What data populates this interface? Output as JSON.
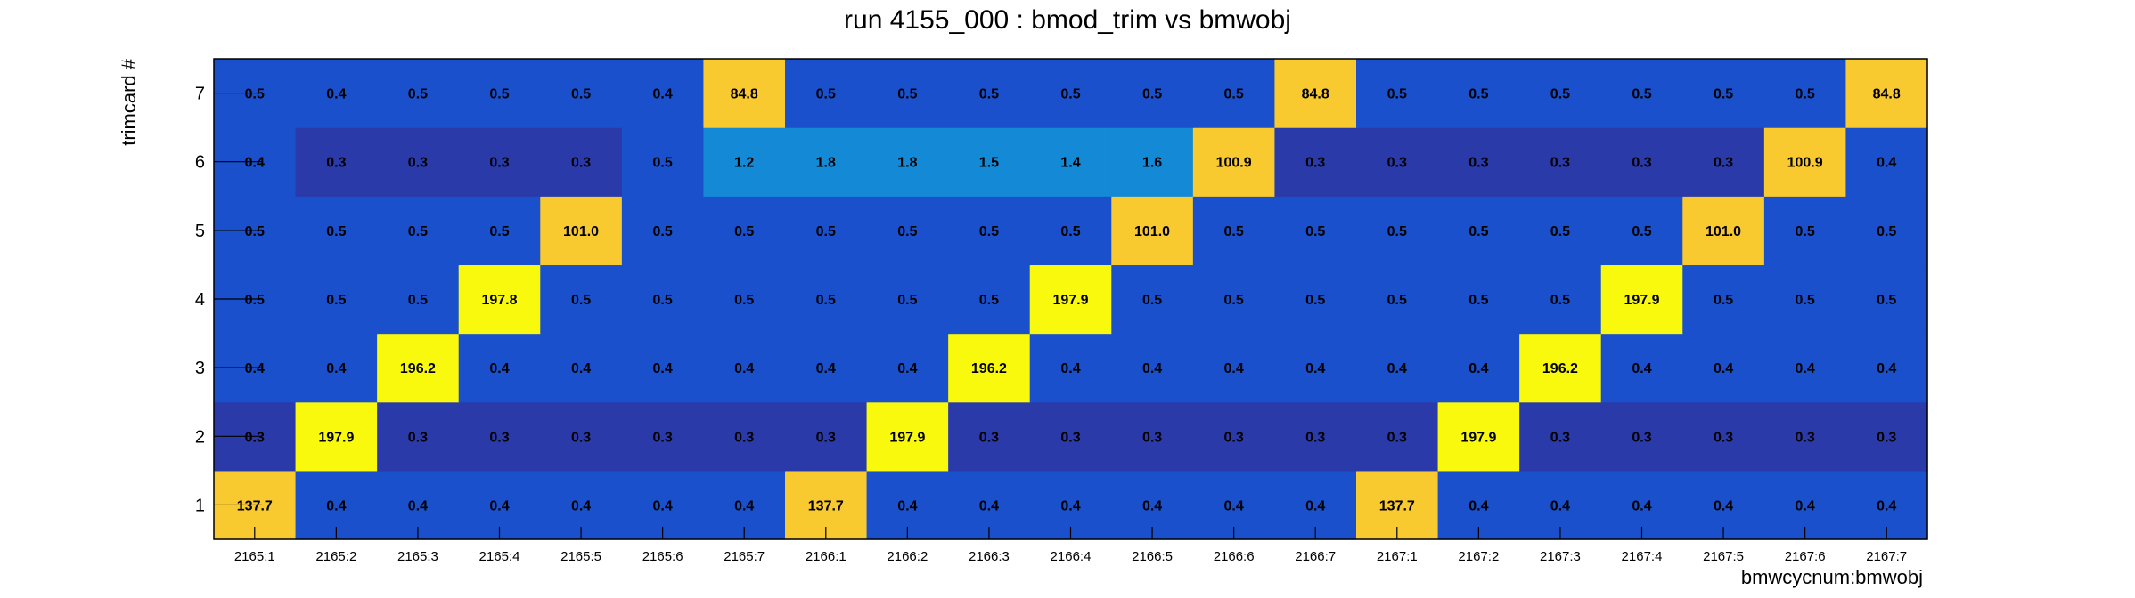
{
  "chart_data": {
    "type": "heatmap",
    "title": "run 4155_000 : bmod_trim vs bmwobj",
    "xlabel": "bmwcycnum:bmwobj",
    "ylabel": "trimcard #",
    "x_categories": [
      "2165:1",
      "2165:2",
      "2165:3",
      "2165:4",
      "2165:5",
      "2165:6",
      "2165:7",
      "2166:1",
      "2166:2",
      "2166:3",
      "2166:4",
      "2166:5",
      "2166:6",
      "2166:7",
      "2167:1",
      "2167:2",
      "2167:3",
      "2167:4",
      "2167:5",
      "2167:6",
      "2167:7"
    ],
    "y_categories": [
      "1",
      "2",
      "3",
      "4",
      "5",
      "6",
      "7"
    ],
    "values": [
      [
        "137.7",
        "0.4",
        "0.4",
        "0.4",
        "0.4",
        "0.4",
        "0.4",
        "137.7",
        "0.4",
        "0.4",
        "0.4",
        "0.4",
        "0.4",
        "0.4",
        "137.7",
        "0.4",
        "0.4",
        "0.4",
        "0.4",
        "0.4",
        "0.4"
      ],
      [
        "0.3",
        "197.9",
        "0.3",
        "0.3",
        "0.3",
        "0.3",
        "0.3",
        "0.3",
        "197.9",
        "0.3",
        "0.3",
        "0.3",
        "0.3",
        "0.3",
        "0.3",
        "197.9",
        "0.3",
        "0.3",
        "0.3",
        "0.3",
        "0.3"
      ],
      [
        "0.4",
        "0.4",
        "196.2",
        "0.4",
        "0.4",
        "0.4",
        "0.4",
        "0.4",
        "0.4",
        "196.2",
        "0.4",
        "0.4",
        "0.4",
        "0.4",
        "0.4",
        "0.4",
        "196.2",
        "0.4",
        "0.4",
        "0.4",
        "0.4"
      ],
      [
        "0.5",
        "0.5",
        "0.5",
        "197.8",
        "0.5",
        "0.5",
        "0.5",
        "0.5",
        "0.5",
        "0.5",
        "197.9",
        "0.5",
        "0.5",
        "0.5",
        "0.5",
        "0.5",
        "0.5",
        "197.9",
        "0.5",
        "0.5",
        "0.5"
      ],
      [
        "0.5",
        "0.5",
        "0.5",
        "0.5",
        "101.0",
        "0.5",
        "0.5",
        "0.5",
        "0.5",
        "0.5",
        "0.5",
        "101.0",
        "0.5",
        "0.5",
        "0.5",
        "0.5",
        "0.5",
        "0.5",
        "101.0",
        "0.5",
        "0.5"
      ],
      [
        "0.4",
        "0.3",
        "0.3",
        "0.3",
        "0.3",
        "0.5",
        "1.2",
        "1.8",
        "1.8",
        "1.5",
        "1.4",
        "1.6",
        "100.9",
        "0.3",
        "0.3",
        "0.3",
        "0.3",
        "0.3",
        "0.3",
        "100.9",
        "0.4"
      ],
      [
        "0.5",
        "0.4",
        "0.5",
        "0.5",
        "0.5",
        "0.4",
        "84.8",
        "0.5",
        "0.5",
        "0.5",
        "0.5",
        "0.5",
        "0.5",
        "84.8",
        "0.5",
        "0.5",
        "0.5",
        "0.5",
        "0.5",
        "0.5",
        "84.8"
      ]
    ],
    "colors": {
      "low": "#2a3aa8",
      "base": "#1a50cc",
      "mid": "#1489d6",
      "warm": "#f9c930",
      "high": "#f9f90d",
      "frame": "#000000"
    }
  }
}
